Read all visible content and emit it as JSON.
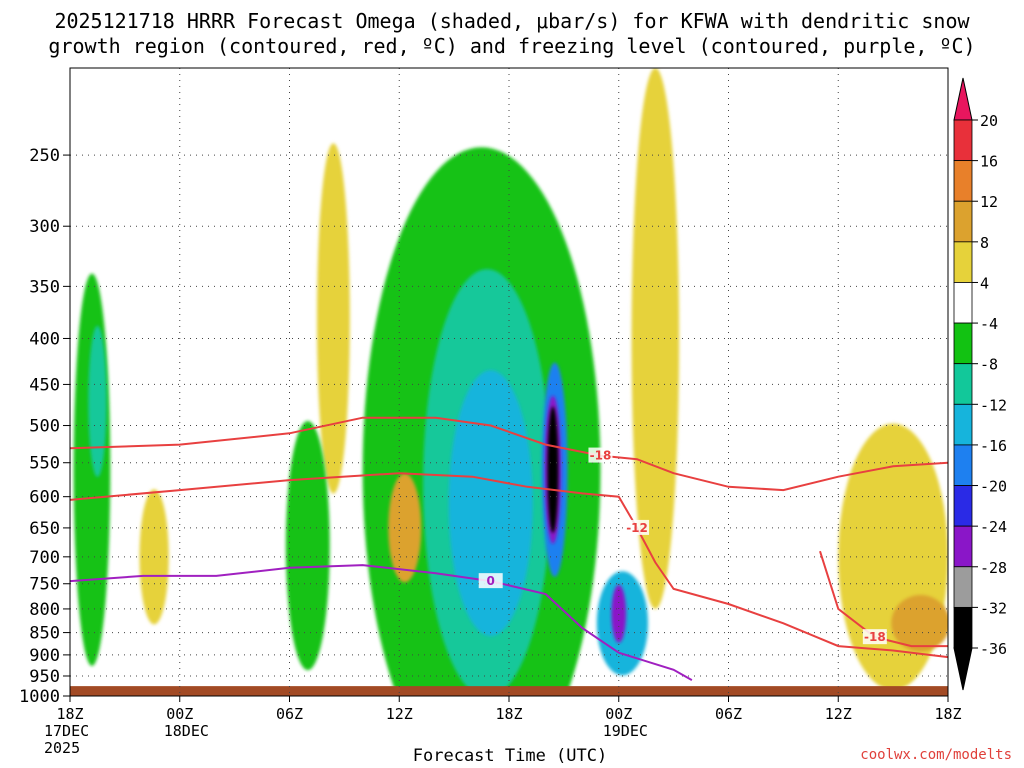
{
  "chart_data": {
    "type": "time-height cross-section",
    "title_line1": "2025121718 HRRR Forecast Omega (shaded, μbar/s) for KFWA with dendritic snow",
    "title_line2": "growth region (contoured, red, ºC) and freezing level (contoured, purple, ºC)",
    "xlabel": "Forecast Time (UTC)",
    "credit": "coolwx.com/modelts",
    "yaxis": {
      "unit": "hPa",
      "range": [
        1000,
        200
      ],
      "ticks": [
        250,
        300,
        350,
        400,
        450,
        500,
        550,
        600,
        650,
        700,
        750,
        800,
        850,
        900,
        950,
        1000
      ]
    },
    "xaxis": {
      "range_hours": [
        0,
        48
      ],
      "ticks": [
        {
          "hour": 0,
          "lines": [
            "18Z",
            "17DEC",
            "2025"
          ]
        },
        {
          "hour": 6,
          "lines": [
            "00Z",
            "18DEC"
          ]
        },
        {
          "hour": 12,
          "lines": [
            "06Z"
          ]
        },
        {
          "hour": 18,
          "lines": [
            "12Z"
          ]
        },
        {
          "hour": 24,
          "lines": [
            "18Z"
          ]
        },
        {
          "hour": 30,
          "lines": [
            "00Z",
            "19DEC"
          ]
        },
        {
          "hour": 36,
          "lines": [
            "06Z"
          ]
        },
        {
          "hour": 42,
          "lines": [
            "12Z"
          ]
        },
        {
          "hour": 48,
          "lines": [
            "18Z"
          ]
        }
      ]
    },
    "colorbar": {
      "levels": [
        20,
        16,
        12,
        8,
        4,
        -4,
        -8,
        -12,
        -16,
        -20,
        -24,
        -28,
        -32,
        -36
      ],
      "colors": [
        "#e8165e",
        "#e8303a",
        "#e8802a",
        "#dca22e",
        "#e6d23a",
        "#ffffff",
        "#12c212",
        "#12c89a",
        "#16b4dc",
        "#1e80f0",
        "#2a2ae6",
        "#8a16c8",
        "#9c9c9c",
        "#000000"
      ]
    },
    "omega_regions": [
      {
        "name": "omega-region-left-green",
        "value": -6,
        "center": [
          1.2,
          560
        ],
        "radii": [
          1.0,
          260
        ]
      },
      {
        "name": "omega-region-left-teal",
        "value": -10,
        "center": [
          1.5,
          470
        ],
        "radii": [
          0.5,
          90
        ]
      },
      {
        "name": "omega-region-early-yellow",
        "value": 6,
        "center": [
          4.6,
          700
        ],
        "radii": [
          0.8,
          120
        ]
      },
      {
        "name": "omega-region-upper-yellow",
        "value": 6,
        "center": [
          14.4,
          380
        ],
        "radii": [
          0.9,
          160
        ]
      },
      {
        "name": "omega-region-mid-green",
        "value": -6,
        "center": [
          13.0,
          680
        ],
        "radii": [
          1.2,
          210
        ]
      },
      {
        "name": "omega-region-main-green",
        "value": -6,
        "center": [
          22.5,
          560
        ],
        "radii": [
          6.5,
          380
        ]
      },
      {
        "name": "omega-region-main-teal",
        "value": -10,
        "center": [
          22.8,
          580
        ],
        "radii": [
          3.5,
          290
        ]
      },
      {
        "name": "omega-region-main-cyan",
        "value": -14,
        "center": [
          23.0,
          610
        ],
        "radii": [
          2.3,
          200
        ]
      },
      {
        "name": "omega-region-orange-cell",
        "value": 10,
        "center": [
          18.3,
          650
        ],
        "radii": [
          0.9,
          90
        ]
      },
      {
        "name": "omega-region-blue-core",
        "value": -18,
        "center": [
          26.5,
          560
        ],
        "radii": [
          0.7,
          150
        ]
      },
      {
        "name": "omega-region-purple-core",
        "value": -26,
        "center": [
          26.4,
          560
        ],
        "radii": [
          0.45,
          105
        ]
      },
      {
        "name": "omega-region-black-core",
        "value": -40,
        "center": [
          26.4,
          560
        ],
        "radii": [
          0.3,
          90
        ]
      },
      {
        "name": "omega-region-upper-right-yellow",
        "value": 6,
        "center": [
          32.0,
          400
        ],
        "radii": [
          1.3,
          240
        ]
      },
      {
        "name": "omega-region-lower-blue",
        "value": -14,
        "center": [
          30.2,
          830
        ],
        "radii": [
          1.4,
          110
        ]
      },
      {
        "name": "omega-region-lower-purple",
        "value": -28,
        "center": [
          30.0,
          810
        ],
        "radii": [
          0.4,
          60
        ]
      },
      {
        "name": "omega-region-right-yellow",
        "value": 6,
        "center": [
          45.0,
          700
        ],
        "radii": [
          3.0,
          230
        ]
      },
      {
        "name": "omega-region-right-orange",
        "value": 10,
        "center": [
          46.5,
          830
        ],
        "radii": [
          1.6,
          60
        ]
      }
    ],
    "contours": [
      {
        "name": "dgz-minus18-upper",
        "color": "#e84040",
        "label": "-18",
        "points": [
          [
            0,
            530
          ],
          [
            6,
            525
          ],
          [
            12,
            510
          ],
          [
            16,
            490
          ],
          [
            20,
            490
          ],
          [
            23,
            500
          ],
          [
            26,
            525
          ],
          [
            29,
            540
          ],
          [
            31,
            545
          ],
          [
            33,
            565
          ],
          [
            36,
            585
          ],
          [
            39,
            590
          ],
          [
            42,
            570
          ],
          [
            45,
            555
          ],
          [
            48,
            550
          ]
        ]
      },
      {
        "name": "dgz-minus12",
        "color": "#e84040",
        "label": "-12",
        "points": [
          [
            0,
            605
          ],
          [
            6,
            590
          ],
          [
            12,
            575
          ],
          [
            18,
            565
          ],
          [
            22,
            570
          ],
          [
            25,
            585
          ],
          [
            28,
            595
          ],
          [
            30,
            600
          ],
          [
            31,
            650
          ],
          [
            32,
            710
          ],
          [
            33,
            760
          ],
          [
            36,
            790
          ],
          [
            39,
            830
          ],
          [
            42,
            880
          ],
          [
            45,
            890
          ],
          [
            48,
            905
          ]
        ]
      },
      {
        "name": "dgz-minus18-lower",
        "color": "#e84040",
        "label": "-18",
        "points": [
          [
            41,
            690
          ],
          [
            42,
            800
          ],
          [
            44,
            860
          ],
          [
            46,
            880
          ],
          [
            48,
            880
          ]
        ]
      },
      {
        "name": "freezing-level",
        "color": "#a020c0",
        "label": "0",
        "points": [
          [
            0,
            745
          ],
          [
            4,
            735
          ],
          [
            8,
            735
          ],
          [
            12,
            720
          ],
          [
            16,
            715
          ],
          [
            20,
            730
          ],
          [
            23,
            745
          ],
          [
            26,
            770
          ],
          [
            28,
            840
          ],
          [
            30,
            895
          ],
          [
            33,
            935
          ],
          [
            34,
            960
          ]
        ]
      }
    ],
    "ground": {
      "color": "#a24a24",
      "from_hpa": 975,
      "to_hpa": 1000
    }
  }
}
